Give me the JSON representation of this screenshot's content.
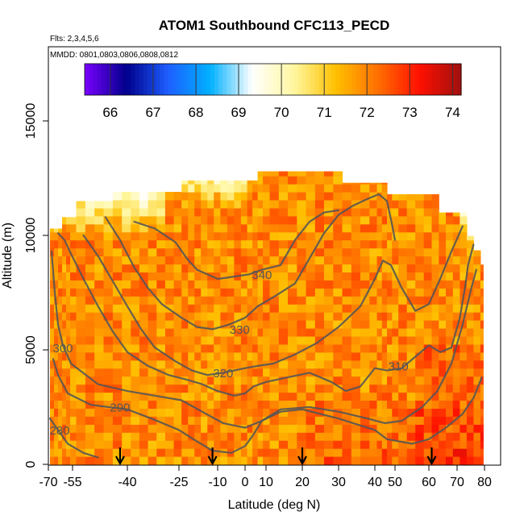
{
  "chart_data": {
    "type": "heatmap",
    "title": "ATOM1 Southbound CFC113_PECD",
    "subtitle_flights": "Flts: 2,3,4,5,6",
    "subtitle_dates": "MMDD: 0801,0803,0806,0808,0812",
    "xlabel": "Latitude (deg N)",
    "ylabel": "Altitude (m)",
    "xlim": [
      -70,
      80
    ],
    "ylim": [
      0,
      17500
    ],
    "x_ticks": [
      -70,
      -55,
      -40,
      -25,
      -10,
      0,
      10,
      20,
      30,
      40,
      50,
      60,
      70,
      80
    ],
    "x_tick_labels": [
      "-70",
      "-55",
      "-40",
      "-25",
      "-10",
      "0",
      "10",
      "20",
      "30",
      "40",
      "50",
      "60",
      "70",
      "80"
    ],
    "y_ticks": [
      0,
      5000,
      10000,
      15000
    ],
    "y_tick_labels": [
      "0",
      "5000",
      "10000",
      "15000"
    ],
    "colorbar": {
      "range": [
        65.4,
        74.2
      ],
      "ticks": [
        66,
        67,
        68,
        69,
        70,
        71,
        72,
        73,
        74
      ],
      "tick_labels": [
        "66",
        "67",
        "68",
        "69",
        "70",
        "71",
        "72",
        "73",
        "74"
      ],
      "colors": [
        "#7a00ff",
        "#00008b",
        "#1e5fff",
        "#00b0ff",
        "#ffffff",
        "#fff7a0",
        "#ffc000",
        "#ff7000",
        "#ff1000",
        "#a01010"
      ]
    },
    "theta_contours": [
      {
        "label": "280",
        "label_pos": [
          -63,
          1300
        ],
        "points": [
          [
            -69,
            2000
          ],
          [
            -64,
            1500
          ],
          [
            -58,
            900
          ],
          [
            -52,
            500
          ],
          [
            -48,
            300
          ]
        ]
      },
      {
        "label": "290",
        "label_pos": [
          -42,
          2300
        ],
        "points": [
          [
            -67,
            4600
          ],
          [
            -64,
            3900
          ],
          [
            -58,
            3100
          ],
          [
            -50,
            2600
          ],
          [
            -40,
            2400
          ],
          [
            -33,
            2000
          ],
          [
            -25,
            1500
          ],
          [
            -18,
            1000
          ],
          [
            -12,
            600
          ],
          [
            -5,
            500
          ],
          [
            0,
            800
          ],
          [
            4,
            1300
          ],
          [
            8,
            1900
          ],
          [
            14,
            2300
          ],
          [
            20,
            2400
          ],
          [
            30,
            2000
          ],
          [
            40,
            1500
          ],
          [
            46,
            1100
          ],
          [
            55,
            900
          ],
          [
            60,
            1100
          ],
          [
            66,
            1600
          ],
          [
            72,
            2200
          ],
          [
            76,
            2900
          ],
          [
            79,
            3800
          ]
        ]
      },
      {
        "label": "300",
        "label_pos": [
          -61,
          4900
        ],
        "points": [
          [
            -68,
            9300
          ],
          [
            -66,
            7500
          ],
          [
            -64,
            6100
          ],
          [
            -61,
            5200
          ],
          [
            -56,
            4400
          ],
          [
            -48,
            3500
          ],
          [
            -40,
            3200
          ],
          [
            -32,
            3000
          ],
          [
            -24,
            2800
          ],
          [
            -16,
            2300
          ],
          [
            -8,
            1800
          ],
          [
            0,
            1600
          ],
          [
            8,
            1900
          ],
          [
            14,
            2400
          ],
          [
            22,
            2500
          ],
          [
            30,
            2300
          ],
          [
            38,
            2000
          ],
          [
            45,
            1800
          ],
          [
            52,
            1900
          ],
          [
            58,
            2500
          ],
          [
            63,
            3200
          ],
          [
            68,
            4400
          ],
          [
            72,
            6100
          ],
          [
            75,
            7600
          ],
          [
            77,
            8500
          ]
        ]
      },
      {
        "label": "310",
        "label_pos": [
          51,
          4100
        ],
        "points": [
          [
            -64,
            10100
          ],
          [
            -60,
            9800
          ],
          [
            -56,
            9200
          ],
          [
            -52,
            8100
          ],
          [
            -48,
            6900
          ],
          [
            -44,
            5800
          ],
          [
            -40,
            4900
          ],
          [
            -34,
            4300
          ],
          [
            -28,
            3900
          ],
          [
            -22,
            3700
          ],
          [
            -16,
            3500
          ],
          [
            -10,
            3200
          ],
          [
            -4,
            3000
          ],
          [
            0,
            3100
          ],
          [
            4,
            3400
          ],
          [
            10,
            3600
          ],
          [
            16,
            3800
          ],
          [
            22,
            4000
          ],
          [
            28,
            3600
          ],
          [
            32,
            3200
          ],
          [
            36,
            3400
          ],
          [
            40,
            4200
          ],
          [
            46,
            4100
          ],
          [
            52,
            4200
          ],
          [
            56,
            4700
          ],
          [
            60,
            5200
          ],
          [
            64,
            4900
          ],
          [
            68,
            5100
          ],
          [
            71,
            6400
          ],
          [
            73,
            7800
          ],
          [
            74,
            8700
          ],
          [
            76,
            9600
          ]
        ]
      },
      {
        "label": "320",
        "label_pos": [
          -8,
          3800
        ],
        "points": [
          [
            -52,
            10000
          ],
          [
            -48,
            9100
          ],
          [
            -44,
            8000
          ],
          [
            -40,
            6900
          ],
          [
            -36,
            5900
          ],
          [
            -32,
            5100
          ],
          [
            -26,
            4500
          ],
          [
            -20,
            4100
          ],
          [
            -14,
            3900
          ],
          [
            -8,
            4000
          ],
          [
            0,
            4200
          ],
          [
            6,
            4300
          ],
          [
            12,
            4400
          ],
          [
            18,
            4800
          ],
          [
            24,
            5300
          ],
          [
            30,
            6000
          ],
          [
            36,
            6900
          ],
          [
            40,
            8100
          ],
          [
            44,
            8900
          ],
          [
            48,
            8700
          ],
          [
            52,
            7700
          ],
          [
            56,
            6700
          ],
          [
            60,
            7000
          ],
          [
            64,
            8100
          ],
          [
            68,
            9300
          ],
          [
            72,
            10400
          ]
        ]
      },
      {
        "label": "330",
        "label_pos": [
          -2,
          5700
        ],
        "points": [
          [
            -46,
            10800
          ],
          [
            -42,
            9800
          ],
          [
            -38,
            8600
          ],
          [
            -34,
            7700
          ],
          [
            -30,
            7000
          ],
          [
            -24,
            6400
          ],
          [
            -18,
            6000
          ],
          [
            -12,
            5900
          ],
          [
            -6,
            6100
          ],
          [
            0,
            6400
          ],
          [
            6,
            6900
          ],
          [
            12,
            7300
          ],
          [
            18,
            7900
          ],
          [
            22,
            9000
          ],
          [
            26,
            10100
          ],
          [
            30,
            10900
          ],
          [
            34,
            11300
          ],
          [
            38,
            11600
          ],
          [
            42,
            11800
          ],
          [
            46,
            11500
          ],
          [
            48,
            10700
          ],
          [
            50,
            9800
          ]
        ]
      },
      {
        "label": "340",
        "label_pos": [
          8,
          8100
        ],
        "points": [
          [
            -38,
            10600
          ],
          [
            -32,
            10300
          ],
          [
            -26,
            9700
          ],
          [
            -22,
            9000
          ],
          [
            -18,
            8500
          ],
          [
            -14,
            8300
          ],
          [
            -10,
            8100
          ],
          [
            -4,
            8200
          ],
          [
            2,
            8300
          ],
          [
            8,
            8500
          ],
          [
            14,
            8700
          ],
          [
            18,
            9800
          ],
          [
            22,
            10600
          ],
          [
            26,
            11000
          ],
          [
            30,
            11100
          ]
        ]
      }
    ],
    "flight_arrows_lat": [
      -42,
      -12,
      20,
      61
    ]
  }
}
